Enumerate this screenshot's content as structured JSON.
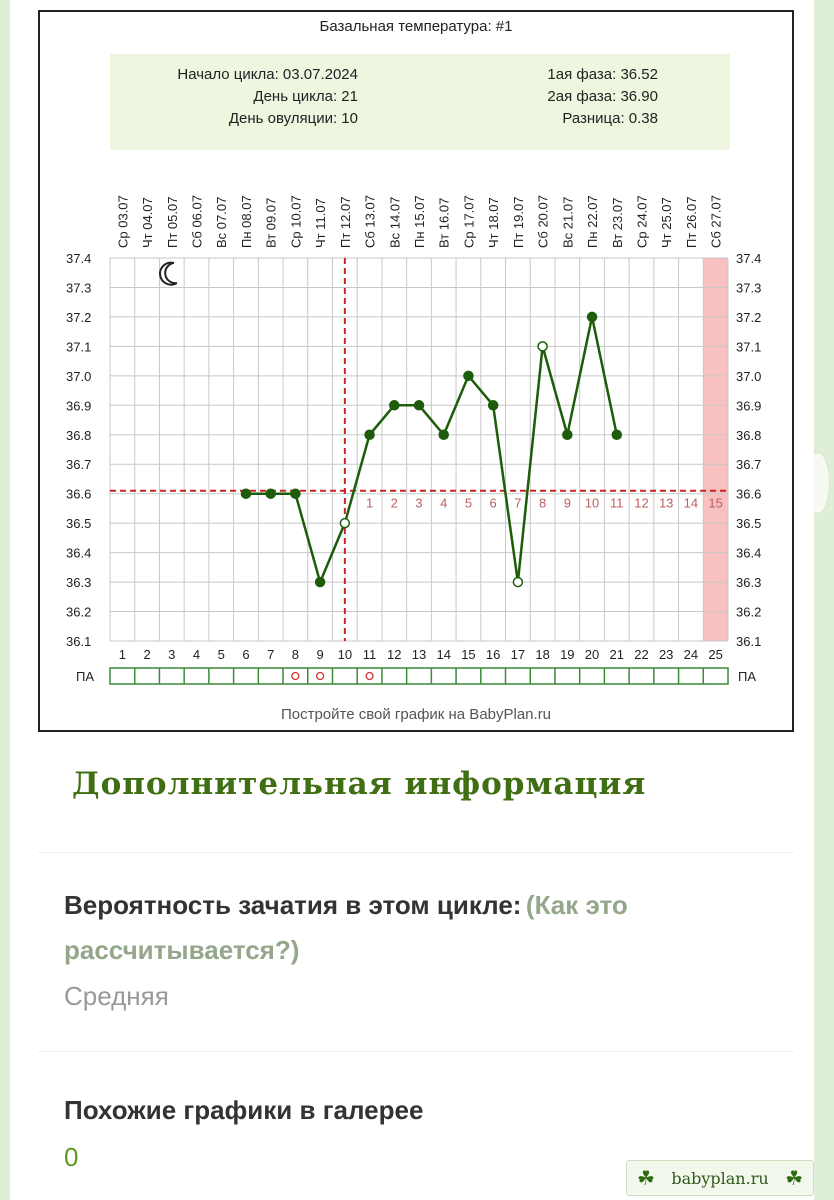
{
  "chart_header": {
    "title": "Базальная температура: #1",
    "cycle_start": "Начало цикла: 03.07.2024",
    "cycle_day": "День цикла: 21",
    "ovulation_day": "День овуляции: 10",
    "phase1": "1ая фаза: 36.52",
    "phase2": "2ая фаза: 36.90",
    "difference": "Разница: 0.38"
  },
  "chart_data": {
    "type": "line",
    "title": "Базальная температура: #1",
    "date_labels": [
      "Ср 03.07",
      "Чт 04.07",
      "Пт 05.07",
      "Сб 06.07",
      "Вс 07.07",
      "Пн 08.07",
      "Вт 09.07",
      "Ср 10.07",
      "Чт 11.07",
      "Пт 12.07",
      "Сб 13.07",
      "Вс 14.07",
      "Пн 15.07",
      "Вт 16.07",
      "Ср 17.07",
      "Чт 18.07",
      "Пт 19.07",
      "Сб 20.07",
      "Вс 21.07",
      "Пн 22.07",
      "Вт 23.07",
      "Ср 24.07",
      "Чт 25.07",
      "Пт 26.07",
      "Сб 27.07"
    ],
    "day_numbers": [
      "1",
      "2",
      "3",
      "4",
      "5",
      "6",
      "7",
      "8",
      "9",
      "10",
      "11",
      "12",
      "13",
      "14",
      "15",
      "16",
      "17",
      "18",
      "19",
      "20",
      "21",
      "22",
      "23",
      "24",
      "25"
    ],
    "y_ticks": [
      "37.4",
      "37.3",
      "37.2",
      "37.1",
      "37.0",
      "36.9",
      "36.8",
      "36.7",
      "36.6",
      "36.5",
      "36.4",
      "36.3",
      "36.2",
      "36.1"
    ],
    "ylim": [
      36.1,
      37.4
    ],
    "series": [
      {
        "x": [
          6,
          7,
          8,
          9,
          10,
          11,
          12,
          13,
          14,
          15,
          16,
          17,
          18,
          19,
          20,
          21
        ],
        "y": [
          36.6,
          36.6,
          36.6,
          36.3,
          36.5,
          36.8,
          36.9,
          36.9,
          36.8,
          37.0,
          36.9,
          36.3,
          37.1,
          36.8,
          37.2,
          36.8
        ],
        "open_points_days": [
          10,
          17,
          18
        ],
        "color": "#1d5c0a"
      }
    ],
    "coverline": 36.61,
    "ovulation_day": 10,
    "luteal_numbers": [
      "1",
      "2",
      "3",
      "4",
      "5",
      "6",
      "7",
      "8",
      "9",
      "10",
      "11",
      "12",
      "13",
      "14",
      "15"
    ],
    "luteal_highlight_day": 25,
    "pa_label": "ПА",
    "pa_marks_days": [
      8,
      9,
      11
    ],
    "grid": true,
    "moon_icon": "crescent-moon-icon"
  },
  "footer_note": "Постройте свой график на BabyPlan.ru",
  "section_heading": "Дополнительная информация",
  "conception": {
    "label": "Вероятность зачатия в этом цикле:",
    "link_line1": "(Как это",
    "link_line2": "рассчитывается?)",
    "value": "Средняя"
  },
  "similar": {
    "label": "Похожие графики в галерее",
    "value": "0"
  },
  "watermark": {
    "text": "babyplan.ru",
    "icon": "clover-icon"
  },
  "colors": {
    "heading": "#3f6f12",
    "line": "#1d5c0a",
    "coverline": "#cc2222",
    "highlight_column": "#f8c0c0",
    "panel_bg": "#eef6e0",
    "luteal_numbers": "#c06060"
  }
}
